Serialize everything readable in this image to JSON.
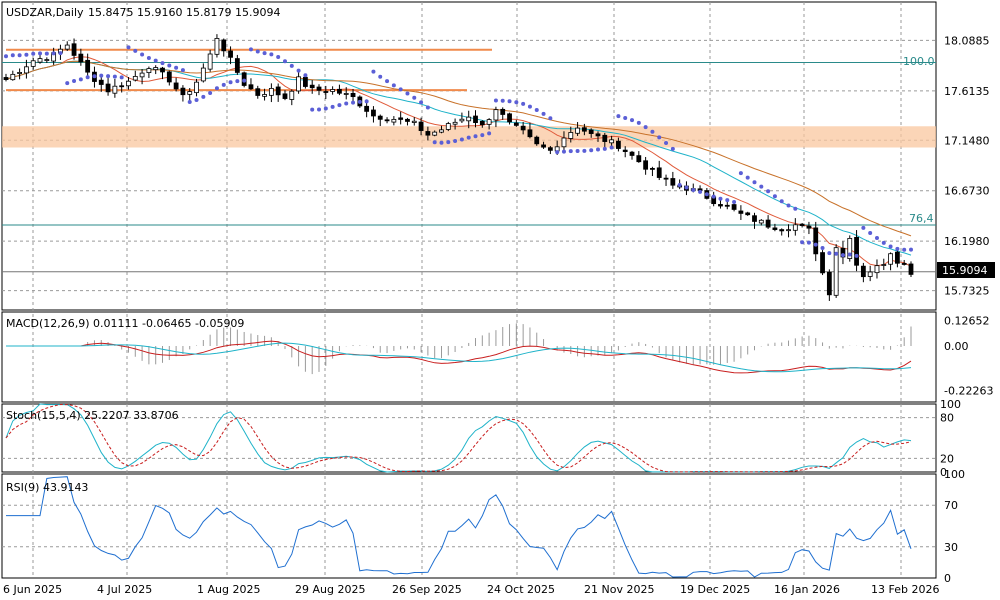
{
  "chart_data": [
    {
      "type": "candlestick",
      "title": "USDZAR,Daily",
      "ohlc_label": "15.8475 15.9160 15.8179 15.9094",
      "last_price": "15.9094",
      "y_ticks": [
        "18.0885",
        "17.6135",
        "17.1480",
        "16.6730",
        "16.1980",
        "15.7325"
      ],
      "ylim": [
        15.55,
        18.45
      ],
      "x_tick_labels": [
        "6 Jun 2025",
        "4 Jul 2025",
        "1 Aug 2025",
        "29 Aug 2025",
        "26 Sep 2025",
        "24 Oct 2025",
        "21 Nov 2025",
        "19 Dec 2025",
        "16 Jan 2026",
        "13 Feb 2026"
      ],
      "close_path": [
        [
          0,
          17.72
        ],
        [
          4,
          17.9
        ],
        [
          7,
          17.95
        ],
        [
          9,
          18.05
        ],
        [
          12,
          17.78
        ],
        [
          15,
          17.62
        ],
        [
          18,
          17.7
        ],
        [
          21,
          17.85
        ],
        [
          24,
          17.72
        ],
        [
          26,
          17.55
        ],
        [
          28,
          17.7
        ],
        [
          30,
          17.95
        ],
        [
          31,
          18.12
        ],
        [
          33,
          17.9
        ],
        [
          35,
          17.68
        ],
        [
          37,
          17.58
        ],
        [
          39,
          17.62
        ],
        [
          41,
          17.55
        ],
        [
          43,
          17.72
        ],
        [
          45,
          17.62
        ],
        [
          48,
          17.62
        ],
        [
          51,
          17.55
        ],
        [
          54,
          17.38
        ],
        [
          57,
          17.35
        ],
        [
          60,
          17.3
        ],
        [
          62,
          17.2
        ],
        [
          64,
          17.25
        ],
        [
          66,
          17.32
        ],
        [
          68,
          17.38
        ],
        [
          70,
          17.28
        ],
        [
          72,
          17.45
        ],
        [
          74,
          17.3
        ],
        [
          76,
          17.22
        ],
        [
          78,
          17.1
        ],
        [
          80,
          17.05
        ],
        [
          82,
          17.18
        ],
        [
          84,
          17.28
        ],
        [
          86,
          17.2
        ],
        [
          88,
          17.15
        ],
        [
          90,
          17.1
        ],
        [
          92,
          17.0
        ],
        [
          94,
          16.9
        ],
        [
          96,
          16.8
        ],
        [
          98,
          16.72
        ],
        [
          100,
          16.7
        ],
        [
          102,
          16.65
        ],
        [
          104,
          16.58
        ],
        [
          106,
          16.52
        ],
        [
          108,
          16.45
        ],
        [
          110,
          16.4
        ],
        [
          112,
          16.35
        ],
        [
          114,
          16.32
        ],
        [
          116,
          16.35
        ],
        [
          118,
          16.3
        ],
        [
          119,
          16.1
        ],
        [
          120,
          15.9
        ],
        [
          121,
          15.72
        ],
        [
          122,
          16.15
        ],
        [
          123,
          16.05
        ],
        [
          124,
          16.25
        ],
        [
          125,
          15.98
        ],
        [
          126,
          15.88
        ],
        [
          127,
          15.92
        ],
        [
          128,
          15.95
        ],
        [
          129,
          16.0
        ],
        [
          130,
          16.1
        ],
        [
          131,
          16.02
        ],
        [
          132,
          15.98
        ],
        [
          133,
          15.91
        ]
      ],
      "series": [
        {
          "name": "",
          "color": "#e05a3a",
          "role": "moving-average"
        },
        {
          "name": "",
          "color": "#1fb3c9",
          "role": "moving-average"
        },
        {
          "name": "",
          "color": "#c8722a",
          "role": "moving-average"
        },
        {
          "name": "",
          "color": "#5b5fd6",
          "role": "parabolic-sar"
        }
      ],
      "levels": [
        {
          "price": 17.88,
          "label": "100.0",
          "color": "#2a8a8a"
        },
        {
          "price": 16.35,
          "label": "76,4",
          "color": "#2a8a8a"
        },
        {
          "price": 15.91,
          "label": "",
          "color": "#777777"
        }
      ],
      "resistance_lines": [
        {
          "price": 18.0,
          "color": "#f08a4b"
        },
        {
          "price": 17.62,
          "color": "#f08a4b"
        }
      ],
      "zone": {
        "low": 17.08,
        "high": 17.28,
        "color": "#f9c79f"
      }
    },
    {
      "type": "macd",
      "label": "MACD(12,26,9) 0.01111 -0.06465 -0.05909",
      "y_ticks": [
        "0.12652",
        "0.00",
        "-0.22263"
      ],
      "ylim": [
        -0.28,
        0.17
      ]
    },
    {
      "type": "stochastic",
      "label": "Stoch(15,5,4) 25.2207 33.8706",
      "y_ticks": [
        "100",
        "80",
        "20",
        "0"
      ],
      "ylim": [
        0,
        100
      ]
    },
    {
      "type": "rsi",
      "label": "RSI(9) 43.9143",
      "y_ticks": [
        "100",
        "70",
        "30",
        "0"
      ],
      "ylim": [
        0,
        100
      ]
    }
  ]
}
